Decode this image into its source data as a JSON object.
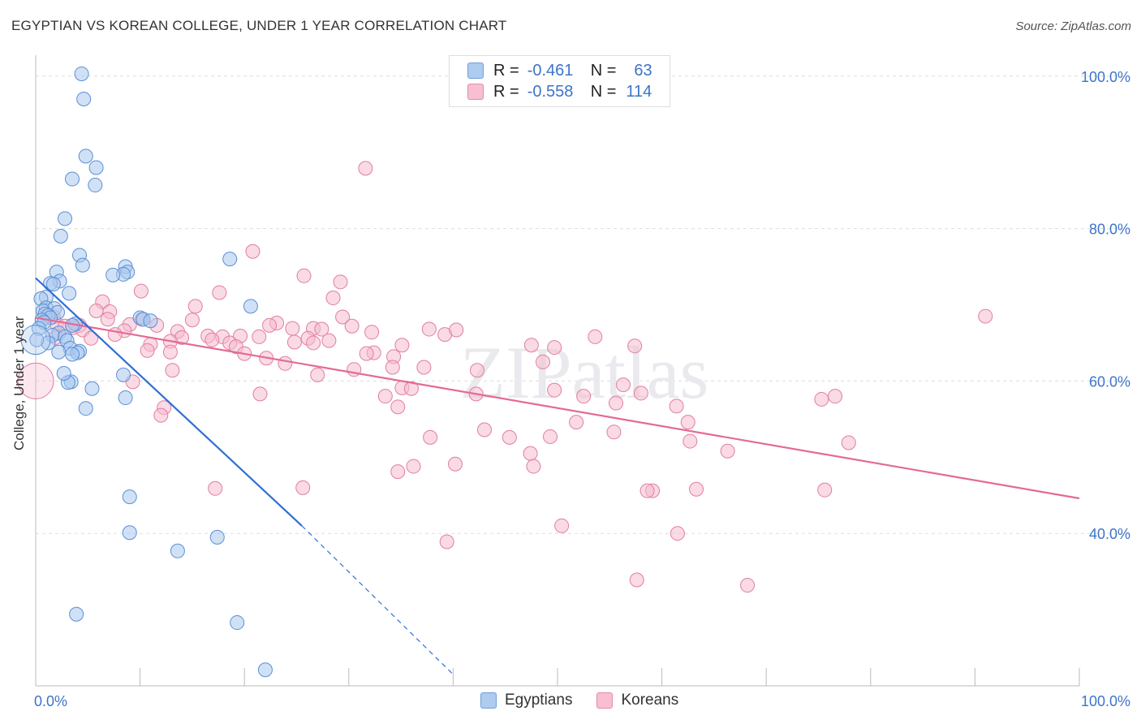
{
  "title": "EGYPTIAN VS KOREAN COLLEGE, UNDER 1 YEAR CORRELATION CHART",
  "source": "Source: ZipAtlas.com",
  "watermark": "ZIPatlas",
  "legend": {
    "rows": [
      {
        "r_label": "R =",
        "r_value": "-0.461",
        "n_label": "N =",
        "n_value": "63",
        "fill": "#aecbf0",
        "stroke": "#6f9fdc"
      },
      {
        "r_label": "R =",
        "r_value": "-0.558",
        "n_label": "N =",
        "n_value": "114",
        "fill": "#f7bfd0",
        "stroke": "#e68aaa"
      }
    ]
  },
  "bottom_legend": [
    {
      "label": "Egyptians",
      "fill": "#aecbf0",
      "stroke": "#6f9fdc"
    },
    {
      "label": "Koreans",
      "fill": "#f7bfd0",
      "stroke": "#e68aaa"
    }
  ],
  "colors": {
    "egyptian_fill": "#a9c8ef",
    "egyptian_stroke": "#5b8fd6",
    "egyptian_line": "#2f6fd3",
    "korean_fill": "#f6bbcd",
    "korean_stroke": "#e07f9f",
    "korean_line": "#e36a95",
    "axis_label": "#3c74c9",
    "grid": "#dddddd"
  },
  "chart_data": {
    "type": "scatter",
    "title": "EGYPTIAN VS KOREAN COLLEGE, UNDER 1 YEAR CORRELATION CHART",
    "xlabel": "",
    "ylabel": "College, Under 1 year",
    "xlim": [
      0,
      100
    ],
    "ylim": [
      20,
      102
    ],
    "x_tick_labels": [
      "0.0%",
      "100.0%"
    ],
    "y_tick_values": [
      40,
      60,
      80,
      100
    ],
    "y_tick_labels": [
      "40.0%",
      "60.0%",
      "80.0%",
      "100.0%"
    ],
    "grid": true,
    "series": [
      {
        "name": "Egyptians",
        "r": -0.461,
        "n": 63,
        "trend": {
          "x": [
            0,
            25.5
          ],
          "y": [
            73.5,
            41.0
          ],
          "dashed_to": {
            "x": 40,
            "y": 21.5
          }
        },
        "points": [
          [
            4.4,
            100.3
          ],
          [
            4.6,
            97.0
          ],
          [
            4.8,
            89.5
          ],
          [
            5.8,
            88.0
          ],
          [
            3.5,
            86.5
          ],
          [
            5.7,
            85.7
          ],
          [
            2.8,
            81.3
          ],
          [
            2.4,
            79.0
          ],
          [
            4.2,
            76.5
          ],
          [
            18.6,
            76.0
          ],
          [
            4.5,
            75.2
          ],
          [
            8.6,
            75.0
          ],
          [
            8.8,
            74.3
          ],
          [
            2.0,
            74.3
          ],
          [
            8.4,
            74.0
          ],
          [
            7.4,
            73.9
          ],
          [
            2.3,
            73.1
          ],
          [
            1.4,
            72.8
          ],
          [
            1.7,
            72.7
          ],
          [
            1.0,
            71.0
          ],
          [
            3.2,
            71.5
          ],
          [
            0.5,
            70.8
          ],
          [
            20.6,
            69.8
          ],
          [
            1.0,
            69.6
          ],
          [
            1.8,
            69.5
          ],
          [
            0.7,
            69.2
          ],
          [
            2.1,
            69.0
          ],
          [
            0.9,
            68.8
          ],
          [
            1.2,
            68.6
          ],
          [
            1.4,
            68.3
          ],
          [
            10.0,
            68.3
          ],
          [
            10.3,
            68.1
          ],
          [
            0.6,
            68.0
          ],
          [
            11.0,
            67.9
          ],
          [
            0.8,
            67.7
          ],
          [
            3.8,
            67.5
          ],
          [
            3.5,
            67.3
          ],
          [
            0.3,
            66.9
          ],
          [
            2.2,
            66.3
          ],
          [
            1.6,
            66.0
          ],
          [
            2.8,
            65.8
          ],
          [
            3.0,
            65.3
          ],
          [
            1.2,
            65.0
          ],
          [
            0.1,
            65.4
          ],
          [
            3.3,
            64.3
          ],
          [
            4.2,
            63.9
          ],
          [
            2.2,
            63.8
          ],
          [
            4.0,
            63.7
          ],
          [
            3.5,
            63.5
          ],
          [
            8.4,
            60.8
          ],
          [
            3.4,
            59.9
          ],
          [
            3.1,
            59.8
          ],
          [
            2.7,
            61.0
          ],
          [
            5.4,
            59.0
          ],
          [
            8.6,
            57.8
          ],
          [
            4.8,
            56.4
          ],
          [
            9.0,
            44.8
          ],
          [
            9.0,
            40.1
          ],
          [
            17.4,
            39.5
          ],
          [
            13.6,
            37.7
          ],
          [
            3.9,
            29.4
          ],
          [
            19.3,
            28.3
          ],
          [
            22.0,
            22.1
          ]
        ]
      },
      {
        "name": "Koreans",
        "r": -0.558,
        "n": 114,
        "trend": {
          "x": [
            0,
            100
          ],
          "y": [
            68.3,
            44.6
          ]
        },
        "points": [
          [
            31.6,
            87.9
          ],
          [
            20.8,
            77.0
          ],
          [
            25.7,
            73.8
          ],
          [
            29.2,
            73.0
          ],
          [
            10.1,
            71.8
          ],
          [
            17.6,
            71.6
          ],
          [
            28.5,
            70.9
          ],
          [
            6.4,
            70.4
          ],
          [
            15.3,
            69.8
          ],
          [
            5.8,
            69.2
          ],
          [
            7.1,
            69.1
          ],
          [
            1.7,
            68.4
          ],
          [
            29.4,
            68.4
          ],
          [
            6.9,
            68.1
          ],
          [
            10.2,
            68.1
          ],
          [
            15.0,
            68.0
          ],
          [
            2.0,
            67.5
          ],
          [
            9.0,
            67.4
          ],
          [
            23.1,
            67.6
          ],
          [
            22.4,
            67.3
          ],
          [
            11.6,
            67.3
          ],
          [
            4.2,
            67.3
          ],
          [
            2.8,
            67.2
          ],
          [
            30.3,
            67.2
          ],
          [
            3.6,
            67.0
          ],
          [
            24.6,
            66.9
          ],
          [
            26.6,
            66.9
          ],
          [
            27.4,
            66.8
          ],
          [
            37.7,
            66.8
          ],
          [
            8.5,
            66.6
          ],
          [
            4.5,
            66.7
          ],
          [
            32.2,
            66.4
          ],
          [
            13.6,
            66.5
          ],
          [
            39.2,
            66.1
          ],
          [
            40.3,
            66.7
          ],
          [
            7.6,
            66.1
          ],
          [
            19.6,
            65.9
          ],
          [
            16.5,
            65.9
          ],
          [
            17.9,
            65.8
          ],
          [
            14.0,
            65.7
          ],
          [
            21.4,
            65.8
          ],
          [
            1.9,
            65.7
          ],
          [
            26.1,
            65.6
          ],
          [
            5.3,
            65.6
          ],
          [
            16.9,
            65.4
          ],
          [
            12.9,
            65.2
          ],
          [
            24.8,
            65.1
          ],
          [
            28.1,
            65.3
          ],
          [
            18.6,
            65.0
          ],
          [
            26.6,
            65.0
          ],
          [
            11.0,
            64.8
          ],
          [
            35.1,
            64.7
          ],
          [
            47.5,
            64.7
          ],
          [
            57.4,
            64.6
          ],
          [
            49.7,
            64.4
          ],
          [
            53.6,
            65.8
          ],
          [
            10.7,
            64.0
          ],
          [
            12.9,
            63.8
          ],
          [
            19.2,
            64.5
          ],
          [
            20.0,
            63.6
          ],
          [
            32.4,
            63.7
          ],
          [
            31.7,
            63.6
          ],
          [
            22.1,
            63.0
          ],
          [
            34.3,
            63.2
          ],
          [
            23.9,
            62.3
          ],
          [
            48.6,
            62.5
          ],
          [
            30.5,
            61.5
          ],
          [
            13.1,
            61.4
          ],
          [
            34.2,
            61.8
          ],
          [
            37.2,
            61.8
          ],
          [
            42.3,
            61.4
          ],
          [
            27.0,
            60.8
          ],
          [
            9.3,
            59.9
          ],
          [
            56.3,
            59.5
          ],
          [
            35.1,
            59.1
          ],
          [
            36.0,
            59.0
          ],
          [
            49.7,
            58.8
          ],
          [
            58.0,
            58.4
          ],
          [
            21.5,
            58.3
          ],
          [
            42.2,
            58.3
          ],
          [
            52.5,
            58.0
          ],
          [
            76.6,
            58.0
          ],
          [
            33.5,
            58.0
          ],
          [
            55.6,
            57.1
          ],
          [
            61.4,
            56.7
          ],
          [
            12.3,
            56.5
          ],
          [
            34.7,
            56.6
          ],
          [
            75.3,
            57.6
          ],
          [
            12.0,
            55.5
          ],
          [
            51.8,
            54.6
          ],
          [
            62.5,
            54.6
          ],
          [
            43.0,
            53.6
          ],
          [
            55.4,
            53.3
          ],
          [
            37.8,
            52.6
          ],
          [
            45.4,
            52.6
          ],
          [
            49.3,
            52.7
          ],
          [
            77.9,
            51.9
          ],
          [
            62.7,
            52.1
          ],
          [
            66.3,
            50.8
          ],
          [
            47.4,
            50.5
          ],
          [
            47.7,
            48.8
          ],
          [
            40.2,
            49.1
          ],
          [
            34.7,
            48.1
          ],
          [
            36.2,
            48.8
          ],
          [
            63.3,
            45.8
          ],
          [
            17.2,
            45.9
          ],
          [
            59.1,
            45.6
          ],
          [
            58.6,
            45.6
          ],
          [
            75.6,
            45.7
          ],
          [
            25.6,
            46.0
          ],
          [
            50.4,
            41.0
          ],
          [
            61.5,
            40.0
          ],
          [
            39.4,
            38.9
          ],
          [
            57.6,
            33.9
          ],
          [
            91.0,
            68.5
          ],
          [
            68.2,
            33.2
          ]
        ]
      }
    ]
  }
}
